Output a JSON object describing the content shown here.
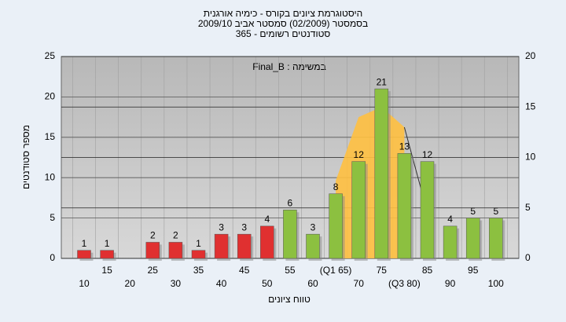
{
  "chart_data": {
    "type": "bar",
    "title": "היסטוגרמת ציונים בקורס - כימיה אורגנית",
    "subtitle": "בסמסטר  (02/2009)  סמסטר אביב 2009/10",
    "subtitle2": "סטודנטים רשומים - 365",
    "annotation": "Final_B : במשימה",
    "x_label": "טווח ציונים",
    "y_label": "מספר סטודנטים",
    "categories": [
      "10",
      "15",
      "20",
      "25",
      "30",
      "35",
      "40",
      "45",
      "50",
      "55",
      "60",
      "(Q1 65)",
      "70",
      "75",
      "(Q3 80)",
      "85",
      "90",
      "95",
      "100"
    ],
    "values": [
      1,
      1,
      null,
      2,
      2,
      1,
      3,
      3,
      4,
      6,
      3,
      8,
      12,
      21,
      13,
      12,
      4,
      5,
      5
    ],
    "colors": [
      "#e03030",
      "#e03030",
      "#e03030",
      "#e03030",
      "#e03030",
      "#e03030",
      "#e03030",
      "#e03030",
      "#e03030",
      "#8cc040",
      "#8cc040",
      "#8cc040",
      "#8cc040",
      "#8cc040",
      "#8cc040",
      "#8cc040",
      "#8cc040",
      "#8cc040",
      "#8cc040"
    ],
    "series": [
      {
        "type": "area",
        "axis": "y2",
        "color": "#ffc040",
        "values": [
          null,
          null,
          null,
          null,
          null,
          null,
          null,
          null,
          null,
          null,
          null,
          7.7,
          14,
          15,
          13,
          null,
          null,
          null,
          null
        ]
      },
      {
        "type": "line",
        "axis": "y2",
        "color": "#303030",
        "values": [
          null,
          null,
          null,
          null,
          null,
          null,
          null,
          null,
          null,
          null,
          null,
          null,
          null,
          null,
          13,
          4.6,
          null,
          null,
          null
        ]
      }
    ],
    "ylim": [
      0,
      25
    ],
    "yticks": [
      0,
      5,
      10,
      15,
      20,
      25
    ],
    "y2lim": [
      0,
      20
    ],
    "y2ticks": [
      0,
      5,
      10,
      15,
      20
    ],
    "grid": true
  }
}
